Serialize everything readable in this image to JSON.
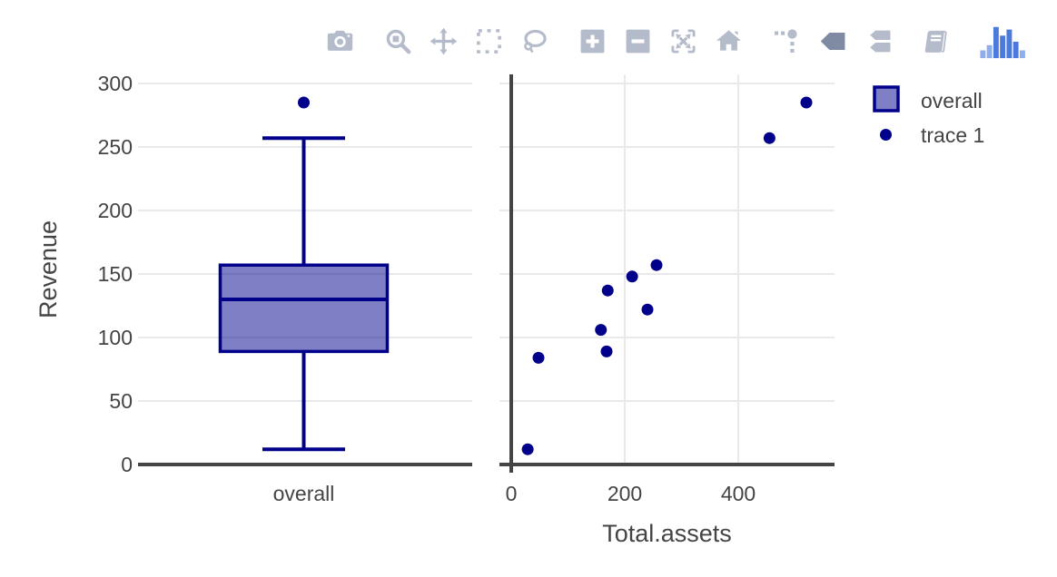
{
  "modebar": {
    "icons": [
      {
        "name": "camera-icon",
        "group": 0,
        "active": false
      },
      {
        "name": "zoom-icon",
        "group": 1,
        "active": false
      },
      {
        "name": "pan-icon",
        "group": 1,
        "active": false
      },
      {
        "name": "box-select-icon",
        "group": 1,
        "active": false
      },
      {
        "name": "lasso-select-icon",
        "group": 1,
        "active": false
      },
      {
        "name": "zoom-in-icon",
        "group": 2,
        "active": false
      },
      {
        "name": "zoom-out-icon",
        "group": 2,
        "active": false
      },
      {
        "name": "autoscale-icon",
        "group": 2,
        "active": false
      },
      {
        "name": "reset-axes-home-icon",
        "group": 2,
        "active": false
      },
      {
        "name": "toggle-spikelines-icon",
        "group": 3,
        "active": false
      },
      {
        "name": "hover-closest-icon",
        "group": 3,
        "active": true
      },
      {
        "name": "hover-compare-icon",
        "group": 3,
        "active": false
      },
      {
        "name": "notebook-icon",
        "group": 4,
        "active": false
      },
      {
        "name": "plotly-logo-icon",
        "group": 5,
        "active": false
      }
    ],
    "inactive_color": "#b4bbca",
    "active_color": "#7e8ba2",
    "logo_color": "#4c79dc",
    "logo_light_color": "#8fadea"
  },
  "legend": {
    "items": [
      {
        "label": "overall",
        "marker": "box-swatch"
      },
      {
        "label": "trace 1",
        "marker": "point"
      }
    ]
  },
  "chart_data": [
    {
      "type": "box",
      "title": "",
      "xlabel": "",
      "ylabel": "Revenue",
      "categories": [
        "overall"
      ],
      "yticks": [
        0,
        50,
        100,
        150,
        200,
        250,
        300
      ],
      "ylim": [
        -7,
        307
      ],
      "grid": true,
      "series": [
        {
          "name": "overall",
          "lowerfence": 12,
          "q1": 89,
          "median": 130,
          "q3": 157,
          "upperfence": 257,
          "outliers": [
            285
          ]
        }
      ],
      "line_color": "#00008b",
      "fill_color": "rgba(0,0,139,0.5)"
    },
    {
      "type": "scatter",
      "title": "",
      "xlabel": "Total.assets",
      "ylabel": "",
      "xticks": [
        0,
        200,
        400
      ],
      "xlim": [
        -21,
        570
      ],
      "ylim": [
        -7,
        307
      ],
      "grid": true,
      "series": [
        {
          "name": "trace 1",
          "points": [
            [
              29,
              12
            ],
            [
              48,
              84
            ],
            [
              158,
              106
            ],
            [
              168,
              89
            ],
            [
              170,
              137
            ],
            [
              213,
              148
            ],
            [
              240,
              122
            ],
            [
              256,
              157
            ],
            [
              455,
              257
            ],
            [
              520,
              285
            ]
          ]
        }
      ],
      "marker_color": "#00008b"
    }
  ],
  "colors": {
    "axis_text": "#444444",
    "gridline": "#e9e9eb",
    "zeroline": "#444444",
    "background": "#ffffff",
    "box_fill": "rgba(0,0,139,0.5)",
    "box_line": "#00008b"
  }
}
